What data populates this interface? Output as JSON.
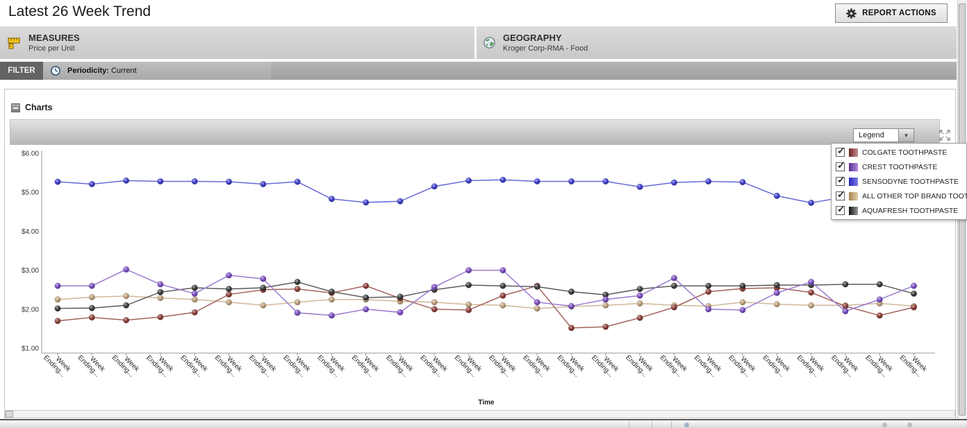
{
  "header": {
    "title": "Latest 26 Week Trend",
    "report_actions_label": "REPORT ACTIONS"
  },
  "info_bars": {
    "measures": {
      "label": "MEASURES",
      "value": "Price per Unit"
    },
    "geography": {
      "label": "GEOGRAPHY",
      "value": "Kroger Corp-RMA - Food"
    }
  },
  "filter_bar": {
    "tab_label": "FILTER",
    "periodicity_label": "Periodicity:",
    "periodicity_value": "Current"
  },
  "charts_section": {
    "title": "Charts",
    "legend_dropdown_value": "Legend"
  },
  "glyphs": {
    "dropdown_arrow": "▼",
    "checkmark": "✓"
  },
  "legend": {
    "items": [
      {
        "label": "COLGATE TOOTHPASTE",
        "checked": true,
        "swatch_from": "#6e2424",
        "swatch_to": "#c98f8f"
      },
      {
        "label": "CREST TOOTHPASTE",
        "checked": true,
        "swatch_from": "#5b2d8e",
        "swatch_to": "#b089e0"
      },
      {
        "label": "SENSODYNE TOOTHPASTE",
        "checked": true,
        "swatch_from": "#2626b8",
        "swatch_to": "#7d7de8"
      },
      {
        "label": "ALL OTHER TOP BRAND TOOT...",
        "checked": true,
        "swatch_from": "#a5814f",
        "swatch_to": "#e3cfae"
      },
      {
        "label": "AQUAFRESH TOOTHPASTE",
        "checked": true,
        "swatch_from": "#111111",
        "swatch_to": "#9a9a9a"
      }
    ]
  },
  "chart_data": {
    "type": "line",
    "xlabel": "Time",
    "ylim": [
      1,
      6
    ],
    "y_ticks": [
      "$6.00",
      "$5.00",
      "$4.00",
      "$3.00",
      "$2.00",
      "$1.00"
    ],
    "y_tick_values": [
      6,
      5,
      4,
      3,
      2,
      1
    ],
    "grid": false,
    "legend_position": "overlay-top-right",
    "x_labels": [
      "Week Ending...",
      "Week Ending...",
      "Week Ending...",
      "Week Ending...",
      "Week Ending...",
      "Week Ending...",
      "Week Ending...",
      "Week Ending...",
      "Week Ending...",
      "Week Ending...",
      "Week Ending...",
      "Week Ending...",
      "Week Ending...",
      "Week Ending...",
      "Week Ending...",
      "Week Ending...",
      "Week Ending...",
      "Week Ending...",
      "Week Ending...",
      "Week Ending...",
      "Week Ending...",
      "Week Ending...",
      "Week Ending...",
      "Week Ending...",
      "Week Ending...",
      "Week Ending..."
    ],
    "series": [
      {
        "name": "COLGATE TOOTHPASTE",
        "color": "#8c3f3a",
        "line": "#a2635c",
        "values": [
          1.7,
          1.79,
          1.72,
          1.8,
          1.92,
          2.38,
          2.5,
          2.52,
          2.42,
          2.6,
          2.28,
          2.0,
          1.98,
          2.35,
          2.6,
          1.52,
          1.55,
          1.78,
          2.05,
          2.45,
          2.53,
          2.55,
          2.43,
          2.08,
          1.84,
          2.05
        ]
      },
      {
        "name": "CREST TOOTHPASTE",
        "color": "#7b4fc0",
        "line": "#9a7ad0",
        "values": [
          2.6,
          2.6,
          3.02,
          2.64,
          2.4,
          2.87,
          2.78,
          1.91,
          1.84,
          2.0,
          1.92,
          2.57,
          3.0,
          3.0,
          2.18,
          2.08,
          2.25,
          2.35,
          2.8,
          2.0,
          1.98,
          2.42,
          2.7,
          1.95,
          2.25,
          2.6
        ]
      },
      {
        "name": "SENSODYNE TOOTHPASTE",
        "color": "#4040cc",
        "line": "#6868d8",
        "values": [
          5.27,
          5.21,
          5.3,
          5.28,
          5.28,
          5.27,
          5.21,
          5.27,
          4.83,
          4.74,
          4.77,
          5.15,
          5.3,
          5.32,
          5.28,
          5.28,
          5.28,
          5.14,
          5.25,
          5.28,
          5.26,
          4.91,
          4.73,
          4.88,
          4.98,
          5.05
        ]
      },
      {
        "name": "ALL OTHER TOP BRAND TOOT...",
        "color": "#bfa27e",
        "line": "#d0b897",
        "values": [
          2.25,
          2.31,
          2.34,
          2.29,
          2.25,
          2.18,
          2.1,
          2.18,
          2.25,
          2.25,
          2.2,
          2.18,
          2.12,
          2.1,
          2.02,
          2.07,
          2.1,
          2.15,
          2.1,
          2.08,
          2.18,
          2.13,
          2.1,
          2.1,
          2.15,
          2.08
        ]
      },
      {
        "name": "AQUAFRESH TOOTHPASTE",
        "color": "#3c3c3c",
        "line": "#5a5a5a",
        "values": [
          2.02,
          2.03,
          2.1,
          2.44,
          2.55,
          2.52,
          2.55,
          2.7,
          2.45,
          2.3,
          2.32,
          2.5,
          2.62,
          2.6,
          2.58,
          2.45,
          2.37,
          2.52,
          2.6,
          2.6,
          2.6,
          2.62,
          2.62,
          2.64,
          2.64,
          2.4
        ]
      }
    ]
  }
}
